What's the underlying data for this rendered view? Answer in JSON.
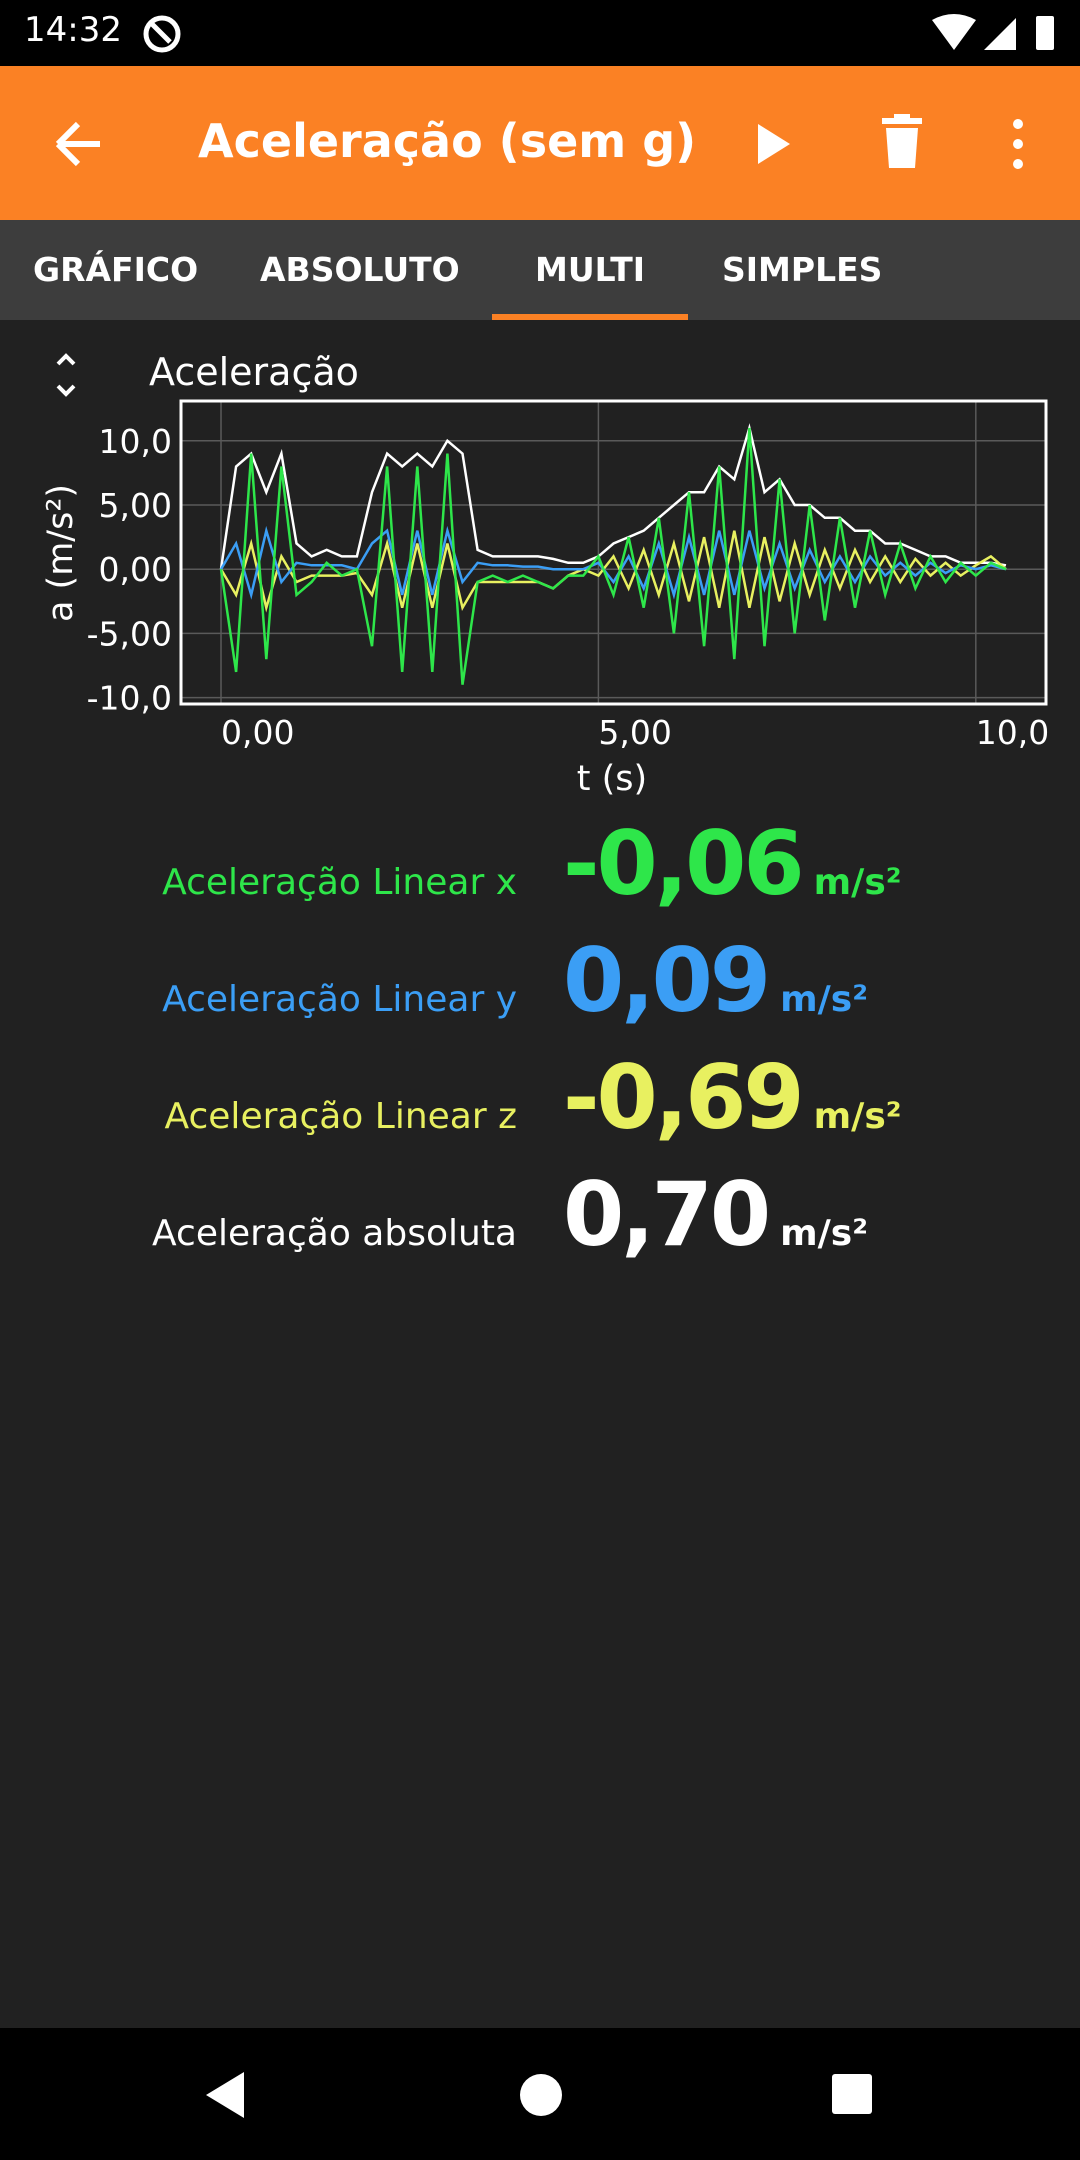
{
  "status_bar": {
    "time": "14:32"
  },
  "app_bar": {
    "title": "Aceleração (sem g)"
  },
  "tabs": {
    "items": [
      "GRÁFICO",
      "ABSOLUTO",
      "MULTI",
      "SIMPLES"
    ],
    "selected": 2
  },
  "chart_data": {
    "type": "line",
    "title": "Aceleração",
    "xlabel": "t (s)",
    "ylabel": "a (m/s²)",
    "x": [
      0,
      0.2,
      0.4,
      0.6,
      0.8,
      1.0,
      1.2,
      1.4,
      1.6,
      1.8,
      2.0,
      2.2,
      2.4,
      2.6,
      2.8,
      3.0,
      3.2,
      3.4,
      3.6,
      3.8,
      4.0,
      4.2,
      4.4,
      4.6,
      4.8,
      5.0,
      5.2,
      5.4,
      5.6,
      5.8,
      6.0,
      6.2,
      6.4,
      6.6,
      6.8,
      7.0,
      7.2,
      7.4,
      7.6,
      7.8,
      8.0,
      8.2,
      8.4,
      8.6,
      8.8,
      9.0,
      9.2,
      9.4,
      9.6,
      9.8,
      10.0,
      10.2,
      10.4
    ],
    "series": [
      {
        "color": "#ffffff",
        "values": [
          0,
          8,
          9,
          6,
          9,
          2,
          1,
          1.5,
          1,
          1,
          6,
          9,
          8,
          9,
          8,
          10,
          9,
          1.5,
          1,
          1,
          1,
          1,
          0.8,
          0.5,
          0.5,
          1,
          2,
          2.5,
          3,
          4,
          5,
          6,
          6,
          8,
          7,
          11,
          6,
          7,
          5,
          5,
          4,
          4,
          3,
          3,
          2,
          2,
          1.5,
          1,
          1,
          0.5,
          0.5,
          0.5,
          0.3
        ]
      },
      {
        "color": "#e8f060",
        "values": [
          0,
          -2,
          2,
          -3,
          1,
          -1,
          -0.5,
          -0.5,
          -0.5,
          -0.3,
          -2,
          2,
          -3,
          2,
          -3,
          2,
          -3,
          -1,
          -1,
          -1,
          -1,
          -1,
          -1.5,
          -0.5,
          0,
          -0.5,
          1,
          -1.5,
          1.5,
          -2,
          2,
          -2.5,
          2.5,
          -3,
          3,
          -3,
          2.5,
          -2.5,
          2,
          -2,
          1.5,
          -1.5,
          1.5,
          -1,
          1,
          -1,
          0.8,
          -0.5,
          0.5,
          -0.5,
          0.3,
          1,
          0
        ]
      },
      {
        "color": "#3b9ef5",
        "values": [
          0,
          2,
          -2,
          3,
          -1,
          0.5,
          0.3,
          0.3,
          0.3,
          0,
          2,
          3,
          -2,
          3,
          -2,
          3,
          -1,
          0.5,
          0.3,
          0.3,
          0.2,
          0.2,
          0,
          0,
          0,
          0.5,
          -1,
          1,
          -1.5,
          2,
          -2,
          2.5,
          -2,
          3,
          -2,
          3,
          -1.5,
          2,
          -1.5,
          1.5,
          -1,
          1,
          -1,
          1,
          -0.5,
          0.5,
          -0.5,
          0.5,
          -0.3,
          0.3,
          0,
          0.3,
          0
        ]
      },
      {
        "color": "#2ee64a",
        "values": [
          0,
          -8,
          9,
          -7,
          8,
          -2,
          -1,
          0.5,
          -0.5,
          0,
          -6,
          8,
          -8,
          8,
          -8,
          9,
          -9,
          -1,
          -0.5,
          -1,
          -0.5,
          -1,
          -1.5,
          -0.5,
          -0.5,
          1,
          -2,
          2.5,
          -3,
          4,
          -5,
          6,
          -6,
          8,
          -7,
          11,
          -6,
          7,
          -5,
          5,
          -4,
          4,
          -3,
          3,
          -2,
          2,
          -1.5,
          1,
          -1,
          0.5,
          -0.5,
          0.5,
          0
        ]
      }
    ],
    "xlim": [
      -0.53,
      10.93
    ],
    "ylim": [
      -10.5,
      13.1
    ],
    "xticks": [
      {
        "value": 0,
        "label": "0,00"
      },
      {
        "value": 5,
        "label": "5,00"
      },
      {
        "value": 10,
        "label": "10,0"
      }
    ],
    "yticks": [
      {
        "value": -10,
        "label": "-10,0"
      },
      {
        "value": -5,
        "label": "-5,00"
      },
      {
        "value": 0,
        "label": "0,00"
      },
      {
        "value": 5,
        "label": "5,00"
      },
      {
        "value": 10,
        "label": "10,0"
      }
    ],
    "grid": true
  },
  "readouts": [
    {
      "label": "Aceleração Linear x",
      "value": "-0,06",
      "unit": "m/s²",
      "color": "#2ee64a"
    },
    {
      "label": "Aceleração Linear y",
      "value": "0,09",
      "unit": "m/s²",
      "color": "#3b9ef5"
    },
    {
      "label": "Aceleração Linear z",
      "value": "-0,69",
      "unit": "m/s²",
      "color": "#e8f060"
    },
    {
      "label": "Aceleração absoluta",
      "value": "0,70",
      "unit": "m/s²",
      "color": "#ffffff"
    }
  ]
}
